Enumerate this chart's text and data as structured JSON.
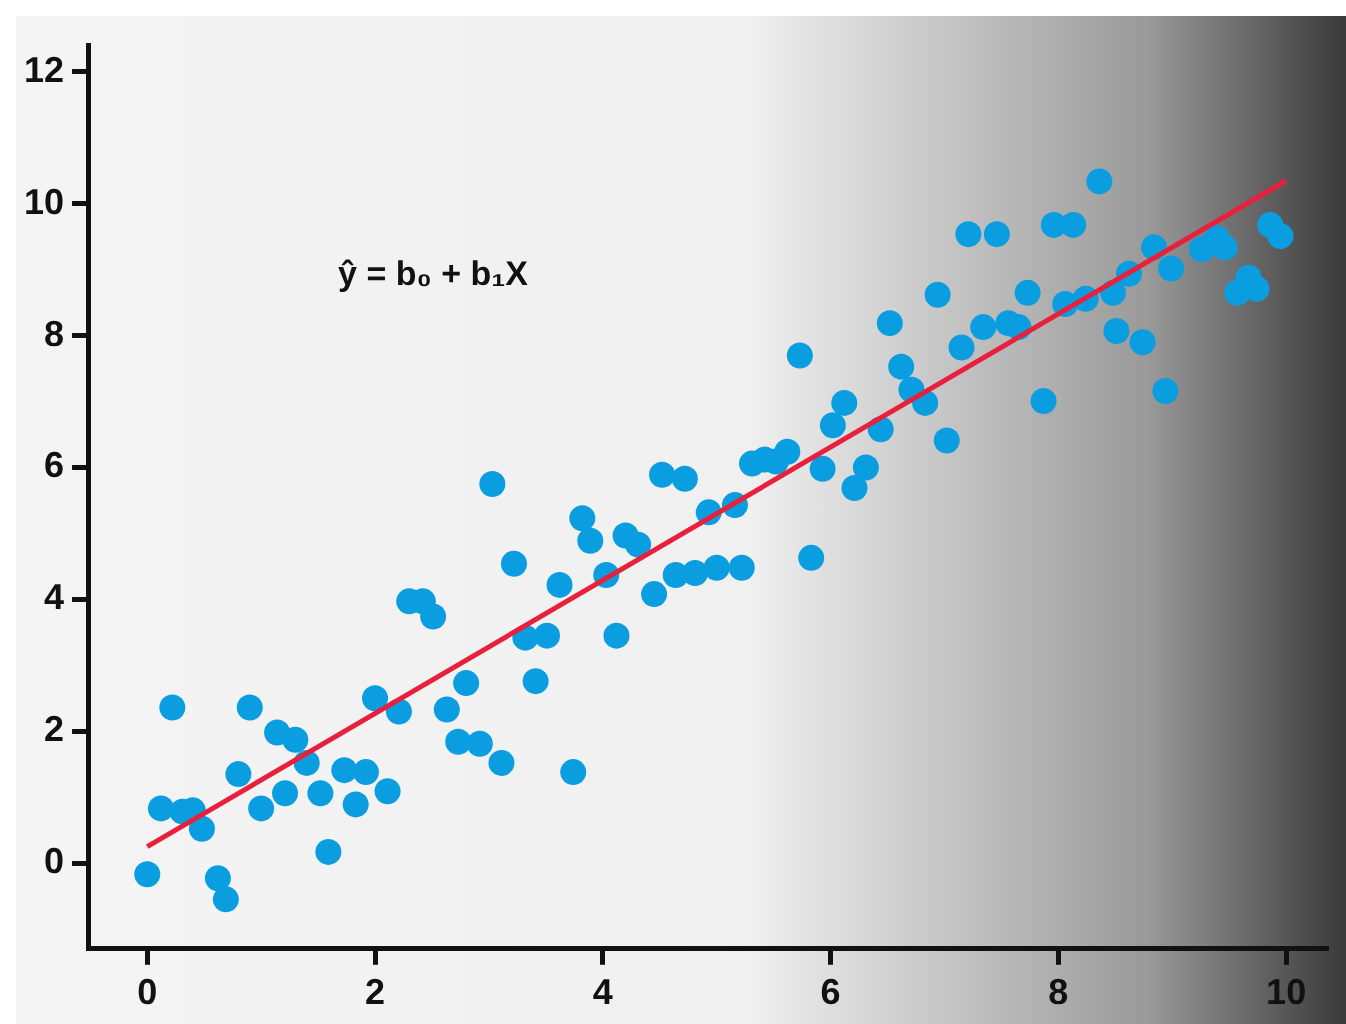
{
  "chart_data": {
    "type": "scatter",
    "annotations": [
      "ŷ = b₀ + b₁X"
    ],
    "xlim": [
      -0.52,
      10.35
    ],
    "ylim": [
      -1.3,
      12.4
    ],
    "xticks": [
      0,
      2,
      4,
      6,
      8,
      10
    ],
    "yticks": [
      0,
      2,
      4,
      6,
      8,
      10,
      12
    ],
    "grid": false,
    "legend": false,
    "marker": "circle",
    "series": [
      {
        "color": "#0a9ee0",
        "x": [
          0.0,
          0.12,
          0.22,
          0.31,
          0.4,
          0.48,
          0.62,
          0.69,
          0.8,
          0.9,
          1.0,
          1.14,
          1.21,
          1.3,
          1.4,
          1.52,
          1.59,
          1.73,
          1.83,
          1.92,
          2.0,
          2.11,
          2.21,
          2.3,
          2.42,
          2.51,
          2.63,
          2.73,
          2.8,
          2.92,
          3.03,
          3.11,
          3.22,
          3.32,
          3.41,
          3.51,
          3.62,
          3.74,
          3.82,
          3.89,
          4.03,
          4.12,
          4.2,
          4.31,
          4.45,
          4.52,
          4.64,
          4.72,
          4.81,
          4.93,
          5.0,
          5.16,
          5.22,
          5.31,
          5.42,
          5.52,
          5.62,
          5.73,
          5.83,
          5.93,
          6.02,
          6.12,
          6.21,
          6.31,
          6.44,
          6.52,
          6.62,
          6.71,
          6.83,
          6.94,
          7.02,
          7.15,
          7.21,
          7.34,
          7.46,
          7.56,
          7.65,
          7.73,
          7.87,
          7.96,
          8.06,
          8.13,
          8.24,
          8.36,
          8.48,
          8.51,
          8.62,
          8.74,
          8.84,
          8.94,
          8.99,
          9.26,
          9.39,
          9.46,
          9.57,
          9.67,
          9.74,
          9.86,
          9.95
        ],
        "values": [
          -0.17,
          0.83,
          2.36,
          0.78,
          0.8,
          0.52,
          -0.23,
          -0.55,
          1.35,
          2.36,
          0.83,
          1.98,
          1.06,
          1.87,
          1.52,
          1.06,
          0.17,
          1.41,
          0.89,
          1.38,
          2.5,
          1.09,
          2.3,
          3.97,
          3.97,
          3.74,
          2.33,
          1.84,
          2.73,
          1.81,
          5.75,
          1.52,
          4.54,
          3.42,
          2.76,
          3.45,
          4.22,
          1.38,
          5.23,
          4.89,
          4.37,
          3.45,
          4.97,
          4.83,
          4.08,
          5.89,
          4.37,
          5.83,
          4.4,
          5.32,
          4.48,
          5.43,
          4.48,
          6.06,
          6.12,
          6.09,
          6.24,
          7.7,
          4.63,
          5.98,
          6.64,
          6.98,
          5.69,
          6.0,
          6.58,
          8.19,
          7.53,
          7.18,
          6.98,
          8.62,
          6.41,
          7.82,
          9.54,
          8.13,
          9.54,
          8.19,
          8.13,
          8.65,
          7.01,
          9.68,
          8.48,
          9.68,
          8.56,
          10.34,
          8.65,
          8.07,
          8.94,
          7.9,
          9.34,
          7.16,
          9.02,
          9.31,
          9.48,
          9.34,
          8.65,
          8.88,
          8.71,
          9.68,
          9.51
        ]
      },
      {
        "type": "line",
        "color": "#e8203c",
        "marker": "none",
        "line_style": "solid",
        "x": [
          0,
          10
        ],
        "values": [
          0.25,
          10.35
        ]
      }
    ]
  }
}
